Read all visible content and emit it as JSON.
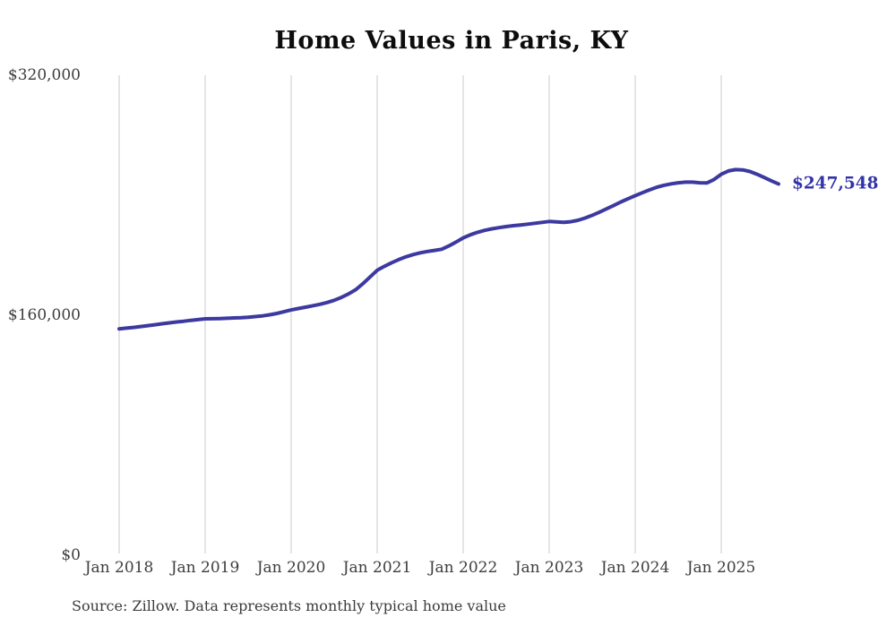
{
  "title": "Home Values in Paris, KY",
  "source_note": "Source: Zillow. Data represents monthly typical home value",
  "colors": {
    "line": "#3c39a0",
    "value_label": "#3232aa",
    "grid": "#cbcbcb",
    "tick_text": "#3d3d3d",
    "title_text": "#0d0d0d",
    "background": "#ffffff"
  },
  "chart_data": {
    "type": "line",
    "title": "Home Values in Paris, KY",
    "xlabel": "",
    "ylabel": "",
    "ylim": [
      0,
      320000
    ],
    "y_ticks": [
      0,
      160000,
      320000
    ],
    "y_tick_labels": [
      "$0",
      "$160,000",
      "$320,000"
    ],
    "x_tick_labels": [
      "Jan 2018",
      "Jan 2019",
      "Jan 2020",
      "Jan 2021",
      "Jan 2022",
      "Jan 2023",
      "Jan 2024",
      "Jan 2025"
    ],
    "grid": "vertical-only",
    "legend": "none",
    "final_value": 247548,
    "final_value_label": "$247,548",
    "series": [
      {
        "name": "Monthly typical home value",
        "start_month": "2018-01",
        "months_per_point": 1,
        "values": [
          150900,
          151400,
          151900,
          152500,
          153100,
          153700,
          154300,
          154900,
          155500,
          156000,
          156600,
          157100,
          157600,
          157700,
          157800,
          158000,
          158200,
          158400,
          158700,
          159100,
          159600,
          160300,
          161200,
          162300,
          163500,
          164500,
          165400,
          166300,
          167300,
          168500,
          170000,
          171900,
          174200,
          177000,
          181000,
          185500,
          190000,
          192600,
          195000,
          197100,
          198900,
          200400,
          201600,
          202500,
          203200,
          204000,
          206200,
          208800,
          211600,
          213600,
          215300,
          216600,
          217600,
          218400,
          219100,
          219700,
          220200,
          220700,
          221300,
          221900,
          222500,
          222200,
          221900,
          222300,
          223300,
          224800,
          226600,
          228700,
          230900,
          233200,
          235500,
          237700,
          239700,
          241700,
          243600,
          245300,
          246600,
          247600,
          248300,
          248700,
          248700,
          248300,
          248200,
          250500,
          254000,
          256200,
          257100,
          256900,
          255800,
          254000,
          251800,
          249600,
          247548
        ]
      }
    ]
  }
}
